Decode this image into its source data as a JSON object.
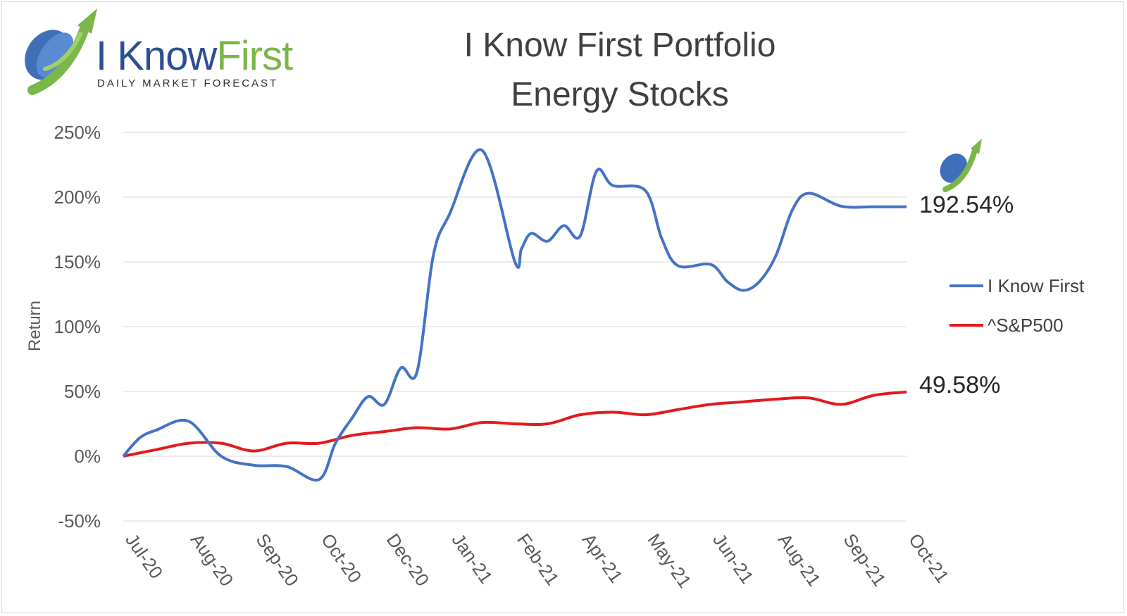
{
  "header": {
    "title_line1": "I Know First Portfolio",
    "title_line2": "Energy Stocks"
  },
  "logo": {
    "word_i_know": "I Know",
    "word_first": "First",
    "tagline": "DAILY MARKET FORECAST"
  },
  "end_labels": {
    "ikf": "192.54%",
    "sp": "49.58%"
  },
  "colors": {
    "ikf": "#4472c4",
    "sp": "#e31a1c",
    "grid": "#d9d9d9",
    "text": "#595959"
  },
  "chart_data": {
    "type": "line",
    "ylabel": "Return",
    "xlabel": "",
    "ylim": [
      -50,
      250
    ],
    "yticks": [
      -50,
      0,
      50,
      100,
      150,
      200,
      250
    ],
    "ytick_labels": [
      "-50%",
      "0%",
      "50%",
      "100%",
      "150%",
      "200%",
      "250%"
    ],
    "categories": [
      "Jul-20",
      "Aug-20",
      "Sep-20",
      "Oct-20",
      "Dec-20",
      "Jan-21",
      "Feb-21",
      "Apr-21",
      "May-21",
      "Jun-21",
      "Aug-21",
      "Sep-21",
      "Oct-21"
    ],
    "grid": true,
    "legend": "right",
    "series": [
      {
        "name": "I Know First",
        "x": [
          0,
          0.25,
          0.5,
          1,
          1.5,
          2,
          2.5,
          3,
          3.25,
          3.5,
          3.75,
          4,
          4.25,
          4.5,
          4.75,
          5,
          5.5,
          6,
          6.1,
          6.25,
          6.5,
          6.75,
          7,
          7.25,
          7.5,
          8,
          8.25,
          8.5,
          9,
          9.25,
          9.5,
          9.75,
          10,
          10.25,
          10.5,
          11,
          11.5,
          12
        ],
        "values": [
          0,
          14,
          20,
          27,
          0,
          -7,
          -8,
          -18,
          10,
          29,
          46,
          40,
          68,
          65,
          155,
          187,
          236,
          150,
          160,
          172,
          166,
          178,
          170,
          220,
          209,
          205,
          168,
          147,
          148,
          135,
          128,
          135,
          155,
          190,
          203,
          193,
          192.54,
          192.54
        ]
      },
      {
        "name": "^S&P500",
        "x": [
          0,
          0.5,
          1,
          1.5,
          2,
          2.5,
          3,
          3.5,
          4,
          4.5,
          5,
          5.5,
          6,
          6.5,
          7,
          7.5,
          8,
          8.5,
          9,
          9.5,
          10,
          10.5,
          11,
          11.5,
          12
        ],
        "values": [
          0,
          5,
          10,
          10,
          4,
          10,
          10,
          16,
          19,
          22,
          21,
          26,
          25,
          25,
          32,
          34,
          32,
          36,
          40,
          42,
          44,
          45,
          40,
          47,
          49.58
        ]
      }
    ]
  }
}
